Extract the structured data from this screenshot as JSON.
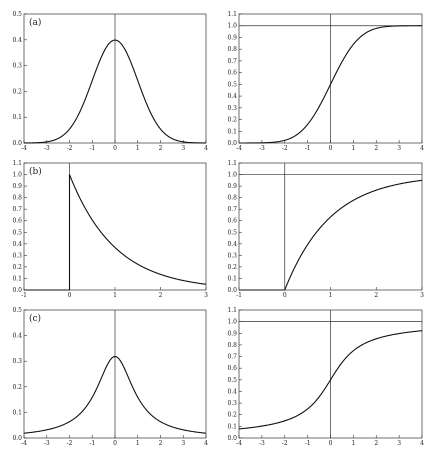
{
  "chart_data": [
    {
      "type": "line",
      "panel_label": "(a)",
      "curve": "normal_pdf",
      "xlim": [
        -4,
        4
      ],
      "ylim": [
        0,
        0.5
      ],
      "x_ticks": [
        "-4",
        "-3",
        "-2",
        "-1",
        "0",
        "1",
        "2",
        "3",
        "4"
      ],
      "y_ticks": [
        "0.0",
        "0.1",
        "0.2",
        "0.3",
        "0.4",
        "0.5"
      ],
      "vertical_reference_x": 0,
      "series": [
        {
          "x": [
            -4,
            -3.5,
            -3,
            -2.5,
            -2,
            -1.5,
            -1,
            -0.5,
            0,
            0.5,
            1,
            1.5,
            2,
            2.5,
            3,
            3.5,
            4
          ],
          "y": [
            0.0001,
            0.0009,
            0.0044,
            0.0175,
            0.054,
            0.1295,
            0.242,
            0.352,
            0.3989,
            0.352,
            0.242,
            0.1295,
            0.054,
            0.0175,
            0.0044,
            0.0009,
            0.0001
          ]
        }
      ]
    },
    {
      "type": "line",
      "panel_label": "",
      "curve": "normal_cdf",
      "xlim": [
        -4,
        4
      ],
      "ylim": [
        0,
        1.1
      ],
      "x_ticks": [
        "-4",
        "-3",
        "-2",
        "-1",
        "0",
        "1",
        "2",
        "3",
        "4"
      ],
      "y_ticks": [
        "0.0",
        "0.1",
        "0.2",
        "0.3",
        "0.4",
        "0.5",
        "0.6",
        "0.7",
        "0.8",
        "0.9",
        "1.0",
        "1.1"
      ],
      "vertical_reference_x": 0,
      "horizontal_reference_y": 1.0,
      "series": [
        {
          "x": [
            -4,
            -3.5,
            -3,
            -2.5,
            -2,
            -1.5,
            -1,
            -0.5,
            0,
            0.5,
            1,
            1.5,
            2,
            2.5,
            3,
            3.5,
            4
          ],
          "y": [
            0.0,
            0.0002,
            0.0013,
            0.0062,
            0.0228,
            0.0668,
            0.1587,
            0.3085,
            0.5,
            0.6915,
            0.8413,
            0.9332,
            0.9772,
            0.9938,
            0.9987,
            0.9998,
            1.0
          ]
        }
      ]
    },
    {
      "type": "line",
      "panel_label": "(b)",
      "curve": "exponential_pdf",
      "xlim": [
        -1,
        3
      ],
      "ylim": [
        0,
        1.1
      ],
      "x_ticks": [
        "-1",
        "0",
        "1",
        "2",
        "3"
      ],
      "y_ticks": [
        "0.0",
        "0.1",
        "0.2",
        "0.3",
        "0.4",
        "0.5",
        "0.6",
        "0.7",
        "0.8",
        "0.9",
        "1.0",
        "1.1"
      ],
      "vertical_reference_x": 0,
      "series": [
        {
          "x": [
            -1,
            0,
            0,
            0.25,
            0.5,
            0.75,
            1,
            1.25,
            1.5,
            1.75,
            2,
            2.25,
            2.5,
            2.75,
            3
          ],
          "y": [
            0,
            0,
            1.0,
            0.7788,
            0.6065,
            0.4724,
            0.3679,
            0.2865,
            0.2231,
            0.1738,
            0.1353,
            0.1054,
            0.0821,
            0.0639,
            0.0498
          ]
        }
      ]
    },
    {
      "type": "line",
      "panel_label": "",
      "curve": "exponential_cdf",
      "xlim": [
        -1,
        3
      ],
      "ylim": [
        0,
        1.1
      ],
      "x_ticks": [
        "-1",
        "0",
        "1",
        "2",
        "3"
      ],
      "y_ticks": [
        "0.0",
        "0.1",
        "0.2",
        "0.3",
        "0.4",
        "0.5",
        "0.6",
        "0.7",
        "0.8",
        "0.9",
        "1.0",
        "1.1"
      ],
      "vertical_reference_x": 0,
      "horizontal_reference_y": 1.0,
      "series": [
        {
          "x": [
            -1,
            0,
            0.25,
            0.5,
            0.75,
            1,
            1.25,
            1.5,
            1.75,
            2,
            2.25,
            2.5,
            2.75,
            3
          ],
          "y": [
            0,
            0,
            0.2212,
            0.3935,
            0.5276,
            0.6321,
            0.7135,
            0.7769,
            0.8262,
            0.8647,
            0.8946,
            0.9179,
            0.9361,
            0.9502
          ]
        }
      ]
    },
    {
      "type": "line",
      "panel_label": "(c)",
      "curve": "cauchy_pdf",
      "xlim": [
        -4,
        4
      ],
      "ylim": [
        0,
        0.5
      ],
      "x_ticks": [
        "-4",
        "-3",
        "-2",
        "-1",
        "0",
        "1",
        "2",
        "3",
        "4"
      ],
      "y_ticks": [
        "0.0",
        "0.1",
        "0.2",
        "0.3",
        "0.4",
        "0.5"
      ],
      "vertical_reference_x": 0,
      "series": [
        {
          "x": [
            -4,
            -3.5,
            -3,
            -2.5,
            -2,
            -1.5,
            -1,
            -0.5,
            0,
            0.5,
            1,
            1.5,
            2,
            2.5,
            3,
            3.5,
            4
          ],
          "y": [
            0.0187,
            0.0241,
            0.0318,
            0.0439,
            0.0637,
            0.0979,
            0.1592,
            0.2546,
            0.3183,
            0.2546,
            0.1592,
            0.0979,
            0.0637,
            0.0439,
            0.0318,
            0.0241,
            0.0187
          ]
        }
      ]
    },
    {
      "type": "line",
      "panel_label": "",
      "curve": "cauchy_cdf",
      "xlim": [
        -4,
        4
      ],
      "ylim": [
        0,
        1.1
      ],
      "x_ticks": [
        "-4",
        "-3",
        "-2",
        "-1",
        "0",
        "1",
        "2",
        "3",
        "4"
      ],
      "y_ticks": [
        "0.0",
        "0.1",
        "0.2",
        "0.3",
        "0.4",
        "0.5",
        "0.6",
        "0.7",
        "0.8",
        "0.9",
        "1.0",
        "1.1"
      ],
      "vertical_reference_x": 0,
      "horizontal_reference_y": 1.0,
      "series": [
        {
          "x": [
            -4,
            -3.5,
            -3,
            -2.5,
            -2,
            -1.5,
            -1,
            -0.5,
            0,
            0.5,
            1,
            1.5,
            2,
            2.5,
            3,
            3.5,
            4
          ],
          "y": [
            0.078,
            0.0886,
            0.1024,
            0.1211,
            0.1476,
            0.1872,
            0.25,
            0.3524,
            0.5,
            0.6476,
            0.75,
            0.8128,
            0.8524,
            0.8789,
            0.8976,
            0.9114,
            0.922
          ]
        }
      ]
    }
  ]
}
